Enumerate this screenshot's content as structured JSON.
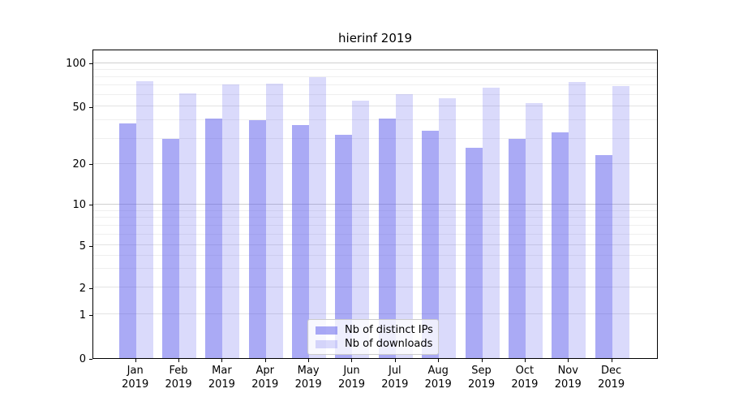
{
  "chart_data": {
    "type": "bar",
    "title": "hierinf 2019",
    "categories": [
      "Jan",
      "Feb",
      "Mar",
      "Apr",
      "May",
      "Jun",
      "Jul",
      "Aug",
      "Sep",
      "Oct",
      "Nov",
      "Dec"
    ],
    "year": "2019",
    "series": [
      {
        "name": "Nb of distinct IPs",
        "color": "#aaaaf5",
        "values": [
          38,
          30,
          41,
          40,
          37,
          32,
          41,
          34,
          26,
          30,
          33,
          23
        ]
      },
      {
        "name": "Nb of downloads",
        "color": "#d9d9f8",
        "values": [
          75,
          62,
          71,
          72,
          80,
          55,
          61,
          57,
          68,
          53,
          74,
          69
        ]
      }
    ],
    "xlabel": "",
    "ylabel": "",
    "yscale": "log-like",
    "yticks": [
      0,
      1,
      2,
      5,
      10,
      20,
      50,
      100
    ],
    "yticks_minor": [
      3,
      4,
      6,
      7,
      8,
      9,
      30,
      40,
      60,
      70,
      80,
      90
    ],
    "ylim": [
      0,
      125
    ],
    "grid": true,
    "legend_position": "lower center"
  }
}
